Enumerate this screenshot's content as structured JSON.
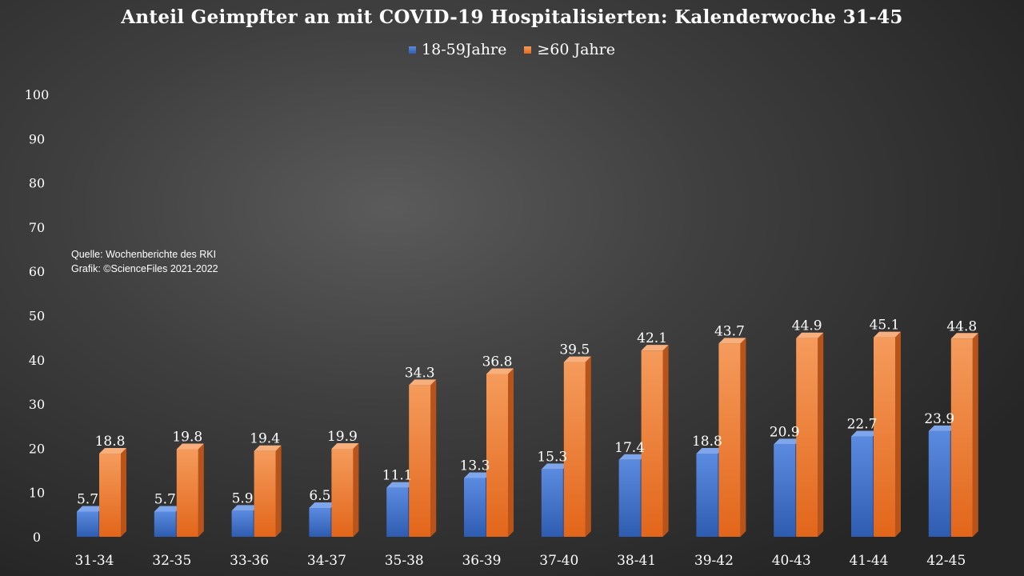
{
  "chart_data": {
    "type": "bar",
    "title": "Anteil Geimpfter an mit COVID-19 Hospitalisierten: Kalenderwoche 31-45",
    "categories": [
      "31-34",
      "32-35",
      "33-36",
      "34-37",
      "35-38",
      "36-39",
      "37-40",
      "38-41",
      "39-42",
      "40-43",
      "41-44",
      "42-45"
    ],
    "series": [
      {
        "name": "18-59Jahre",
        "color": "#4472c4",
        "values": [
          5.7,
          5.7,
          5.9,
          6.5,
          11.1,
          13.3,
          15.3,
          17.4,
          18.8,
          20.9,
          22.7,
          23.9
        ]
      },
      {
        "name": "≥60 Jahre",
        "color": "#ed7d31",
        "values": [
          18.8,
          19.8,
          19.4,
          19.9,
          34.3,
          36.8,
          39.5,
          42.1,
          43.7,
          44.9,
          45.1,
          44.8
        ]
      }
    ],
    "data_labels": [
      [
        "5.7",
        "5.7",
        "5.9",
        "6.5",
        "11.1",
        "13.3",
        "15.3",
        "17.4",
        "18.8",
        "20.9",
        "22.7",
        "23.9"
      ],
      [
        "18.8",
        "19.8",
        "19.4",
        "19.9",
        "34.3",
        "36.8",
        "39.5",
        "42.1",
        "43.7",
        "44.9",
        "45.1",
        "44.8"
      ]
    ],
    "ylim": [
      0,
      100
    ],
    "yticks": [
      "0",
      "10",
      "20",
      "30",
      "40",
      "50",
      "60",
      "70",
      "80",
      "90",
      "100"
    ],
    "ytick_values": [
      0,
      10,
      20,
      30,
      40,
      50,
      60,
      70,
      80,
      90,
      100
    ],
    "grid": false,
    "legend_position": "top"
  },
  "annotation": {
    "source_line": "Quelle: Wochenberichte des RKI",
    "credit_line": "Grafik: ©ScienceFiles 2021-2022"
  }
}
